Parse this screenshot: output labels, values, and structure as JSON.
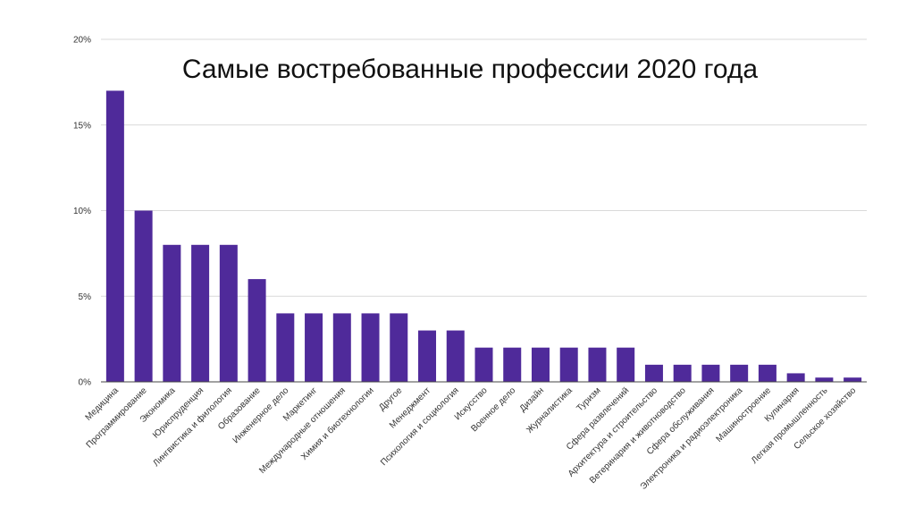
{
  "chart_data": {
    "type": "bar",
    "title": "Самые востребованные профессии 2020 года",
    "xlabel": "",
    "ylabel": "",
    "ylim": [
      0,
      20
    ],
    "y_ticks": [
      "0%",
      "5%",
      "10%",
      "15%",
      "20%"
    ],
    "y_tick_values": [
      0,
      5,
      10,
      15,
      20
    ],
    "grid": true,
    "bar_color": "#4f2a9a",
    "categories": [
      "Медицина",
      "Программирование",
      "Экономика",
      "Юриспруденция",
      "Лингвистика и филология",
      "Образование",
      "Инженерное дело",
      "Маркетинг",
      "Международные отношения",
      "Химия и биотехнологии",
      "Другое",
      "Менеджмент",
      "Психология и социология",
      "Искусство",
      "Военное дело",
      "Дизайн",
      "Журналистика",
      "Туризм",
      "Сфера развлечений",
      "Архитектура и строительство",
      "Ветеринария и животноводство",
      "Сфера обслуживания",
      "Электроника и радиоэлектроника",
      "Машиностроение",
      "Кулинария",
      "Легкая промышленность",
      "Сельское хозяйство"
    ],
    "values": [
      17,
      10,
      8,
      8,
      8,
      6,
      4,
      4,
      4,
      4,
      4,
      3,
      3,
      2,
      2,
      2,
      2,
      2,
      2,
      1,
      1,
      1,
      1,
      1,
      0.5,
      0.25,
      0.25
    ]
  }
}
